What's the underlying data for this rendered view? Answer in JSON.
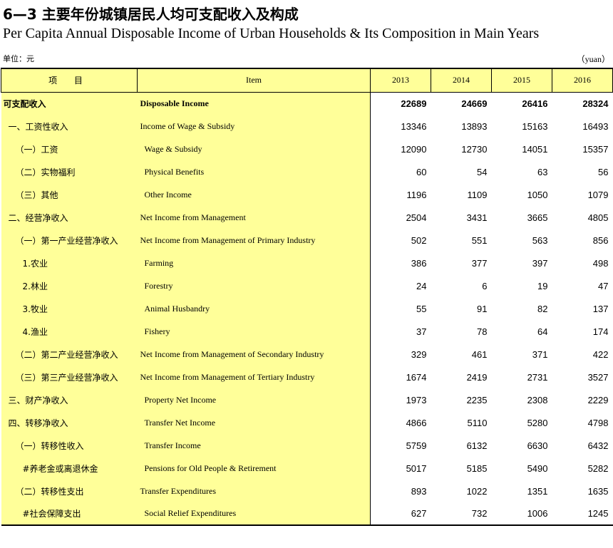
{
  "title_cn": "6—3  主要年份城镇居民人均可支配收入及构成",
  "title_en": "Per Capita Annual Disposable Income of Urban Households & Its Composition in Main Years",
  "unit_cn": "单位：元",
  "unit_en": "（yuan）",
  "header": {
    "item_cn": "项 目",
    "item_en": "Item",
    "years": [
      "2013",
      "2014",
      "2015",
      "2016"
    ]
  },
  "rows": [
    {
      "cn": "可支配收入",
      "en": "Disposable Income",
      "values": [
        "22689",
        "24669",
        "26416",
        "28324"
      ]
    },
    {
      "cn": "一、工资性收入",
      "en": "Income of  Wage & Subsidy",
      "values": [
        "13346",
        "13893",
        "15163",
        "16493"
      ]
    },
    {
      "cn": "（一）工资",
      "en": "Wage & Subsidy",
      "values": [
        "12090",
        "12730",
        "14051",
        "15357"
      ]
    },
    {
      "cn": "（二）实物福利",
      "en": "Physical Benefits",
      "values": [
        "60",
        "54",
        "63",
        "56"
      ]
    },
    {
      "cn": "（三）其他",
      "en": "Other Income",
      "values": [
        "1196",
        "1109",
        "1050",
        "1079"
      ]
    },
    {
      "cn": "二、经营净收入",
      "en": "Net Income from Management",
      "values": [
        "2504",
        "3431",
        "3665",
        "4805"
      ]
    },
    {
      "cn": "（一）第一产业经营净收入",
      "en": "Net Income from Management  of  Primary Industry",
      "values": [
        "502",
        "551",
        "563",
        "856"
      ]
    },
    {
      "cn": "1.农业",
      "en": "Farming",
      "values": [
        "386",
        "377",
        "397",
        "498"
      ]
    },
    {
      "cn": "2.林业",
      "en": "Forestry",
      "values": [
        "24",
        "6",
        "19",
        "47"
      ]
    },
    {
      "cn": "3.牧业",
      "en": "Animal Husbandry",
      "values": [
        "55",
        "91",
        "82",
        "137"
      ]
    },
    {
      "cn": "4.渔业",
      "en": "Fishery",
      "values": [
        "37",
        "78",
        "64",
        "174"
      ]
    },
    {
      "cn": "（二）第二产业经营净收入",
      "en": "Net Income from Management  of  Secondary  Industry",
      "values": [
        "329",
        "461",
        "371",
        "422"
      ]
    },
    {
      "cn": "（三）第三产业经营净收入",
      "en": "Net Income from Management  of  Tertiary  Industry",
      "values": [
        "1674",
        "2419",
        "2731",
        "3527"
      ]
    },
    {
      "cn": "三、财产净收入",
      "en": "Property Net Income",
      "values": [
        "1973",
        "2235",
        "2308",
        "2229"
      ]
    },
    {
      "cn": "四、转移净收入",
      "en": "Transfer Net Income",
      "values": [
        "4866",
        "5110",
        "5280",
        "4798"
      ]
    },
    {
      "cn": "（一）转移性收入",
      "en": "Transfer Income",
      "values": [
        "5759",
        "6132",
        "6630",
        "6432"
      ]
    },
    {
      "cn": "#养老金或离退休金",
      "en": "Pensions for Old People  &  Retirement",
      "values": [
        "5017",
        "5185",
        "5490",
        "5282"
      ]
    },
    {
      "cn": "（二）转移性支出",
      "en": "Transfer Expenditures",
      "values": [
        "893",
        "1022",
        "1351",
        "1635"
      ]
    },
    {
      "cn": "#社会保障支出",
      "en": "Social Relief  Expenditures",
      "values": [
        "627",
        "732",
        "1006",
        "1245"
      ]
    }
  ]
}
